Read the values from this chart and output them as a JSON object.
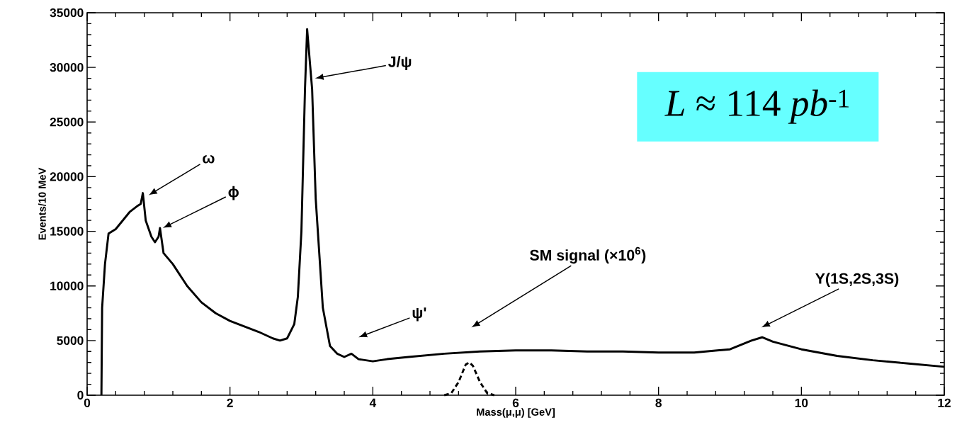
{
  "chart_data": {
    "type": "line",
    "xlabel": "Mass(μ,μ)   [GeV]",
    "ylabel": "Events/10 MeV",
    "xlim": [
      0,
      12
    ],
    "ylim": [
      0,
      35000
    ],
    "xticks": [
      0,
      2,
      4,
      6,
      8,
      10,
      12
    ],
    "yticks": [
      0,
      5000,
      10000,
      15000,
      20000,
      25000,
      30000,
      35000
    ],
    "grid": false,
    "series": [
      {
        "color": "#000000",
        "line_style": "solid",
        "x": [
          0.2,
          0.21,
          0.25,
          0.3,
          0.4,
          0.5,
          0.6,
          0.7,
          0.75,
          0.78,
          0.82,
          0.9,
          0.95,
          1.0,
          1.02,
          1.07,
          1.2,
          1.4,
          1.6,
          1.8,
          2.0,
          2.2,
          2.4,
          2.6,
          2.7,
          2.8,
          2.9,
          2.95,
          3.0,
          3.05,
          3.08,
          3.15,
          3.2,
          3.3,
          3.4,
          3.5,
          3.6,
          3.7,
          3.8,
          4.0,
          4.2,
          4.5,
          5.0,
          5.5,
          6.0,
          6.5,
          7.0,
          7.5,
          8.0,
          8.5,
          9.0,
          9.3,
          9.45,
          9.6,
          10.0,
          10.5,
          11.0,
          11.5,
          12.0
        ],
        "values": [
          0,
          8000,
          12000,
          14800,
          15200,
          16000,
          16800,
          17300,
          17500,
          18500,
          16000,
          14500,
          14000,
          14500,
          15300,
          13000,
          12000,
          10000,
          8500,
          7500,
          6800,
          6300,
          5800,
          5200,
          5000,
          5200,
          6500,
          9000,
          15000,
          28000,
          33500,
          28000,
          18000,
          8000,
          4500,
          3800,
          3500,
          3800,
          3300,
          3100,
          3300,
          3500,
          3800,
          4000,
          4100,
          4100,
          4000,
          4000,
          3900,
          3900,
          4200,
          5000,
          5300,
          4900,
          4200,
          3600,
          3200,
          2900,
          2600
        ]
      },
      {
        "color": "#000000",
        "line_style": "dashed",
        "x": [
          5.0,
          5.1,
          5.2,
          5.3,
          5.35,
          5.4,
          5.5,
          5.6,
          5.7
        ],
        "values": [
          0,
          200,
          1200,
          2800,
          3000,
          2700,
          1200,
          200,
          0
        ]
      }
    ],
    "annotations": [
      "ω",
      "ϕ",
      "J/ψ",
      "ψ'",
      "SM signal (×10$^{6}$)",
      "Υ(1S,2S,3S)",
      "*L* ≈ 114 *pb*$^{-1}$"
    ]
  }
}
